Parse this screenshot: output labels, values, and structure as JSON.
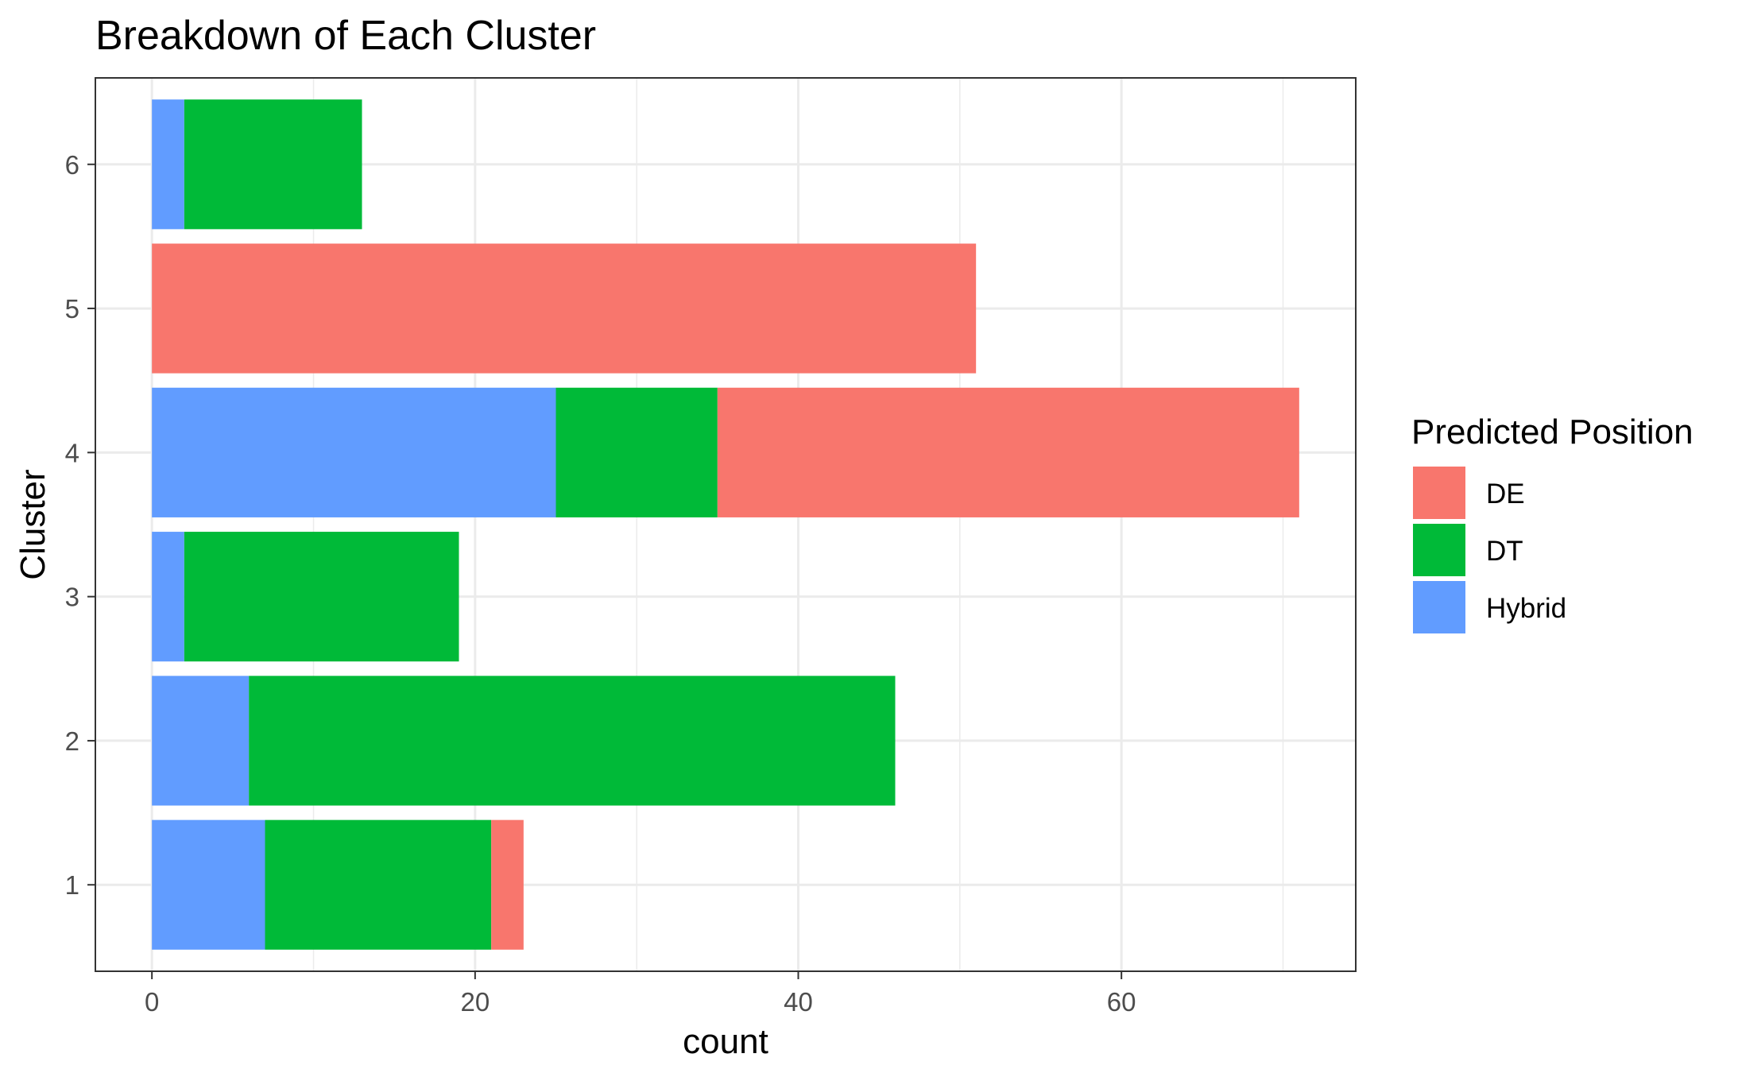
{
  "chart_data": {
    "type": "bar",
    "orientation": "horizontal",
    "stacked": true,
    "title": "Breakdown of Each Cluster",
    "xlabel": "count",
    "ylabel": "Cluster",
    "xlim": [
      -3.5,
      74.5
    ],
    "xticks": [
      0,
      20,
      40,
      60
    ],
    "x_minor_grid": [
      10,
      30,
      50,
      70
    ],
    "categories": [
      "1",
      "2",
      "3",
      "4",
      "5",
      "6"
    ],
    "grid": true,
    "legend": {
      "title": "Predicted Position",
      "placement": "right",
      "entries": [
        "DE",
        "DT",
        "Hybrid"
      ]
    },
    "series": [
      {
        "name": "Hybrid",
        "color": "#619CFF",
        "values": [
          7,
          6,
          2,
          25,
          0,
          2
        ]
      },
      {
        "name": "DT",
        "color": "#00BA38",
        "values": [
          14,
          40,
          17,
          10,
          0,
          11
        ]
      },
      {
        "name": "DE",
        "color": "#F8766D",
        "values": [
          2,
          0,
          0,
          36,
          51,
          0
        ]
      }
    ]
  }
}
